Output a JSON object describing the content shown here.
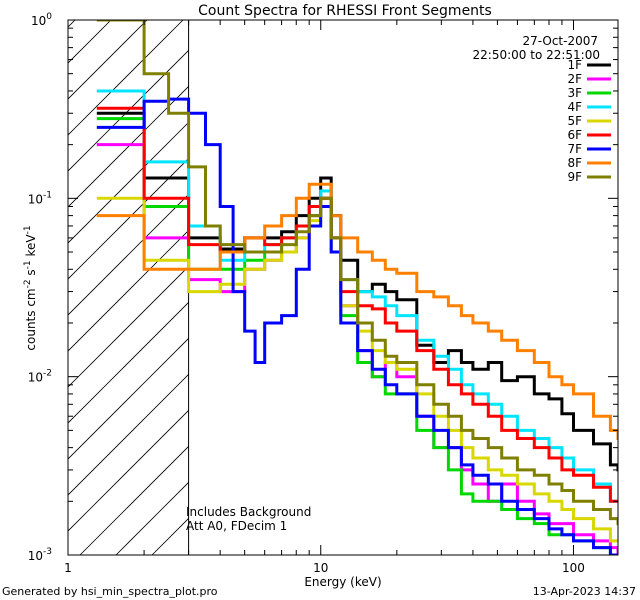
{
  "chart_data": {
    "type": "line",
    "title": "Count Spectra for RHESSI Front Segments",
    "xlabel": "Energy (keV)",
    "ylabel_parts": [
      "counts cm",
      "-2",
      " s",
      "-1",
      " keV",
      "-1"
    ],
    "x_scale": "log",
    "y_scale": "log",
    "xlim": [
      1,
      150
    ],
    "ylim": [
      0.001,
      1
    ],
    "x_ticks": [
      {
        "value": 1,
        "label": "1"
      },
      {
        "value": 10,
        "label": "10"
      },
      {
        "value": 100,
        "label": "100"
      }
    ],
    "y_ticks": [
      {
        "value": 1,
        "base": "10",
        "exp": "0"
      },
      {
        "value": 0.1,
        "base": "10",
        "exp": "-1"
      },
      {
        "value": 0.01,
        "base": "10",
        "exp": "-2"
      },
      {
        "value": 0.001,
        "base": "10",
        "exp": "-3"
      }
    ],
    "date": "27-Oct-2007",
    "time_range": "22:50:00 to 22:51:00",
    "hatched_region_keV": [
      1,
      3
    ],
    "annotations": [
      "Includes Background",
      "Att A0, FDecim 1"
    ],
    "footer_left": "Generated by hsi_min_spectra_plot.pro",
    "footer_right": "13-Apr-2023 14:37",
    "series": [
      {
        "name": "1F",
        "color": "#000000",
        "points": [
          [
            1.3,
            0.3
          ],
          [
            2,
            0.13
          ],
          [
            3,
            0.06
          ],
          [
            4,
            0.052
          ],
          [
            5,
            0.06
          ],
          [
            6,
            0.06
          ],
          [
            7,
            0.065
          ],
          [
            8,
            0.08
          ],
          [
            9,
            0.1
          ],
          [
            10,
            0.13
          ],
          [
            11,
            0.08
          ],
          [
            12,
            0.045
          ],
          [
            14,
            0.03
          ],
          [
            16,
            0.033
          ],
          [
            18,
            0.03
          ],
          [
            20,
            0.027
          ],
          [
            24,
            0.015
          ],
          [
            28,
            0.012
          ],
          [
            32,
            0.014
          ],
          [
            36,
            0.012
          ],
          [
            40,
            0.011
          ],
          [
            46,
            0.012
          ],
          [
            52,
            0.0095
          ],
          [
            60,
            0.01
          ],
          [
            70,
            0.008
          ],
          [
            80,
            0.0075
          ],
          [
            90,
            0.0062
          ],
          [
            100,
            0.005
          ],
          [
            120,
            0.0042
          ],
          [
            140,
            0.0032
          ],
          [
            150,
            0.003
          ]
        ]
      },
      {
        "name": "2F",
        "color": "#ff00ff",
        "points": [
          [
            1.3,
            0.2
          ],
          [
            2,
            0.06
          ],
          [
            3,
            0.035
          ],
          [
            4,
            0.03
          ],
          [
            5,
            0.04
          ],
          [
            6,
            0.045
          ],
          [
            7,
            0.05
          ],
          [
            8,
            0.06
          ],
          [
            9,
            0.08
          ],
          [
            10,
            0.1
          ],
          [
            11,
            0.06
          ],
          [
            12,
            0.025
          ],
          [
            14,
            0.014
          ],
          [
            16,
            0.01
          ],
          [
            18,
            0.012
          ],
          [
            20,
            0.01
          ],
          [
            24,
            0.006
          ],
          [
            28,
            0.004
          ],
          [
            32,
            0.004
          ],
          [
            36,
            0.003
          ],
          [
            40,
            0.0025
          ],
          [
            46,
            0.002
          ],
          [
            52,
            0.0025
          ],
          [
            60,
            0.002
          ],
          [
            70,
            0.0017
          ],
          [
            80,
            0.0015
          ],
          [
            90,
            0.0015
          ],
          [
            100,
            0.0013
          ],
          [
            120,
            0.0012
          ],
          [
            140,
            0.0011
          ],
          [
            150,
            0.001
          ]
        ]
      },
      {
        "name": "3F",
        "color": "#00d800",
        "points": [
          [
            1.3,
            0.28
          ],
          [
            2,
            0.09
          ],
          [
            3,
            0.04
          ],
          [
            4,
            0.04
          ],
          [
            5,
            0.045
          ],
          [
            6,
            0.05
          ],
          [
            7,
            0.06
          ],
          [
            8,
            0.07
          ],
          [
            9,
            0.08
          ],
          [
            10,
            0.1
          ],
          [
            11,
            0.05
          ],
          [
            12,
            0.022
          ],
          [
            14,
            0.012
          ],
          [
            16,
            0.01
          ],
          [
            18,
            0.008
          ],
          [
            20,
            0.008
          ],
          [
            24,
            0.005
          ],
          [
            28,
            0.004
          ],
          [
            32,
            0.003
          ],
          [
            36,
            0.0022
          ],
          [
            40,
            0.002
          ],
          [
            46,
            0.002
          ],
          [
            52,
            0.0018
          ],
          [
            60,
            0.0016
          ],
          [
            70,
            0.0015
          ],
          [
            80,
            0.0013
          ],
          [
            90,
            0.0013
          ],
          [
            100,
            0.0012
          ],
          [
            120,
            0.0011
          ],
          [
            140,
            0.001
          ],
          [
            150,
            0.001
          ]
        ]
      },
      {
        "name": "4F",
        "color": "#00e5ff",
        "points": [
          [
            1.3,
            0.4
          ],
          [
            2,
            0.16
          ],
          [
            3,
            0.07
          ],
          [
            4,
            0.045
          ],
          [
            5,
            0.05
          ],
          [
            6,
            0.055
          ],
          [
            7,
            0.06
          ],
          [
            8,
            0.07
          ],
          [
            9,
            0.09
          ],
          [
            10,
            0.11
          ],
          [
            11,
            0.06
          ],
          [
            12,
            0.035
          ],
          [
            14,
            0.03
          ],
          [
            16,
            0.028
          ],
          [
            18,
            0.025
          ],
          [
            20,
            0.022
          ],
          [
            24,
            0.016
          ],
          [
            28,
            0.013
          ],
          [
            32,
            0.011
          ],
          [
            36,
            0.009
          ],
          [
            40,
            0.008
          ],
          [
            46,
            0.007
          ],
          [
            52,
            0.006
          ],
          [
            60,
            0.005
          ],
          [
            70,
            0.0045
          ],
          [
            80,
            0.004
          ],
          [
            90,
            0.0035
          ],
          [
            100,
            0.003
          ],
          [
            120,
            0.0025
          ],
          [
            140,
            0.002
          ],
          [
            150,
            0.002
          ]
        ]
      },
      {
        "name": "5F",
        "color": "#d8d800",
        "points": [
          [
            1.3,
            0.1
          ],
          [
            2,
            0.045
          ],
          [
            3,
            0.03
          ],
          [
            4,
            0.033
          ],
          [
            5,
            0.04
          ],
          [
            6,
            0.045
          ],
          [
            7,
            0.05
          ],
          [
            8,
            0.06
          ],
          [
            9,
            0.075
          ],
          [
            10,
            0.09
          ],
          [
            11,
            0.05
          ],
          [
            12,
            0.025
          ],
          [
            14,
            0.018
          ],
          [
            16,
            0.014
          ],
          [
            18,
            0.012
          ],
          [
            20,
            0.011
          ],
          [
            24,
            0.008
          ],
          [
            28,
            0.006
          ],
          [
            32,
            0.005
          ],
          [
            36,
            0.004
          ],
          [
            40,
            0.0035
          ],
          [
            46,
            0.003
          ],
          [
            52,
            0.0028
          ],
          [
            60,
            0.0025
          ],
          [
            70,
            0.0022
          ],
          [
            80,
            0.002
          ],
          [
            90,
            0.0018
          ],
          [
            100,
            0.0016
          ],
          [
            120,
            0.0014
          ],
          [
            140,
            0.0012
          ],
          [
            150,
            0.0012
          ]
        ]
      },
      {
        "name": "6F",
        "color": "#ff0000",
        "points": [
          [
            1.3,
            0.32
          ],
          [
            2,
            0.1
          ],
          [
            3,
            0.055
          ],
          [
            4,
            0.05
          ],
          [
            5,
            0.06
          ],
          [
            6,
            0.055
          ],
          [
            7,
            0.06
          ],
          [
            8,
            0.07
          ],
          [
            9,
            0.09
          ],
          [
            10,
            0.1
          ],
          [
            11,
            0.06
          ],
          [
            12,
            0.03
          ],
          [
            14,
            0.025
          ],
          [
            16,
            0.024
          ],
          [
            18,
            0.02
          ],
          [
            20,
            0.018
          ],
          [
            24,
            0.014
          ],
          [
            28,
            0.011
          ],
          [
            32,
            0.009
          ],
          [
            36,
            0.008
          ],
          [
            40,
            0.007
          ],
          [
            46,
            0.006
          ],
          [
            52,
            0.005
          ],
          [
            60,
            0.0045
          ],
          [
            70,
            0.004
          ],
          [
            80,
            0.0035
          ],
          [
            90,
            0.003
          ],
          [
            100,
            0.0028
          ],
          [
            120,
            0.0024
          ],
          [
            140,
            0.002
          ],
          [
            150,
            0.002
          ]
        ]
      },
      {
        "name": "7F",
        "color": "#0000ff",
        "points": [
          [
            1.3,
            0.25
          ],
          [
            2,
            0.35
          ],
          [
            2.5,
            0.36
          ],
          [
            3,
            0.3
          ],
          [
            3.5,
            0.2
          ],
          [
            4,
            0.09
          ],
          [
            4.5,
            0.03
          ],
          [
            5,
            0.018
          ],
          [
            5.5,
            0.012
          ],
          [
            6,
            0.02
          ],
          [
            7,
            0.022
          ],
          [
            8,
            0.04
          ],
          [
            9,
            0.07
          ],
          [
            10,
            0.09
          ],
          [
            11,
            0.05
          ],
          [
            12,
            0.02
          ],
          [
            14,
            0.014
          ],
          [
            16,
            0.011
          ],
          [
            18,
            0.009
          ],
          [
            20,
            0.008
          ],
          [
            24,
            0.006
          ],
          [
            28,
            0.005
          ],
          [
            32,
            0.004
          ],
          [
            36,
            0.0032
          ],
          [
            40,
            0.0028
          ],
          [
            46,
            0.0025
          ],
          [
            52,
            0.002
          ],
          [
            60,
            0.0018
          ],
          [
            70,
            0.0016
          ],
          [
            80,
            0.0014
          ],
          [
            90,
            0.0013
          ],
          [
            100,
            0.0012
          ],
          [
            120,
            0.0011
          ],
          [
            140,
            0.001
          ],
          [
            150,
            0.001
          ]
        ]
      },
      {
        "name": "8F",
        "color": "#ff8000",
        "points": [
          [
            1.3,
            0.08
          ],
          [
            2,
            0.04
          ],
          [
            3,
            0.04
          ],
          [
            4,
            0.05
          ],
          [
            5,
            0.06
          ],
          [
            6,
            0.07
          ],
          [
            7,
            0.08
          ],
          [
            8,
            0.1
          ],
          [
            9,
            0.12
          ],
          [
            10,
            0.12
          ],
          [
            11,
            0.08
          ],
          [
            12,
            0.06
          ],
          [
            14,
            0.05
          ],
          [
            16,
            0.045
          ],
          [
            18,
            0.04
          ],
          [
            20,
            0.038
          ],
          [
            24,
            0.03
          ],
          [
            28,
            0.028
          ],
          [
            32,
            0.025
          ],
          [
            36,
            0.022
          ],
          [
            40,
            0.02
          ],
          [
            46,
            0.018
          ],
          [
            52,
            0.016
          ],
          [
            60,
            0.014
          ],
          [
            70,
            0.012
          ],
          [
            80,
            0.01
          ],
          [
            90,
            0.009
          ],
          [
            100,
            0.008
          ],
          [
            120,
            0.006
          ],
          [
            140,
            0.005
          ],
          [
            150,
            0.0045
          ]
        ]
      },
      {
        "name": "9F",
        "color": "#808000",
        "points": [
          [
            1.3,
            1.0
          ],
          [
            2,
            0.5
          ],
          [
            2.5,
            0.3
          ],
          [
            3,
            0.15
          ],
          [
            3.5,
            0.07
          ],
          [
            4,
            0.055
          ],
          [
            5,
            0.05
          ],
          [
            6,
            0.05
          ],
          [
            7,
            0.055
          ],
          [
            8,
            0.065
          ],
          [
            9,
            0.08
          ],
          [
            10,
            0.1
          ],
          [
            11,
            0.06
          ],
          [
            12,
            0.035
          ],
          [
            14,
            0.02
          ],
          [
            16,
            0.016
          ],
          [
            18,
            0.013
          ],
          [
            20,
            0.012
          ],
          [
            24,
            0.009
          ],
          [
            28,
            0.007
          ],
          [
            32,
            0.006
          ],
          [
            36,
            0.005
          ],
          [
            40,
            0.0045
          ],
          [
            46,
            0.004
          ],
          [
            52,
            0.0035
          ],
          [
            60,
            0.003
          ],
          [
            70,
            0.0028
          ],
          [
            80,
            0.0025
          ],
          [
            90,
            0.0023
          ],
          [
            100,
            0.002
          ],
          [
            120,
            0.0018
          ],
          [
            140,
            0.0016
          ],
          [
            150,
            0.0015
          ]
        ]
      }
    ]
  }
}
